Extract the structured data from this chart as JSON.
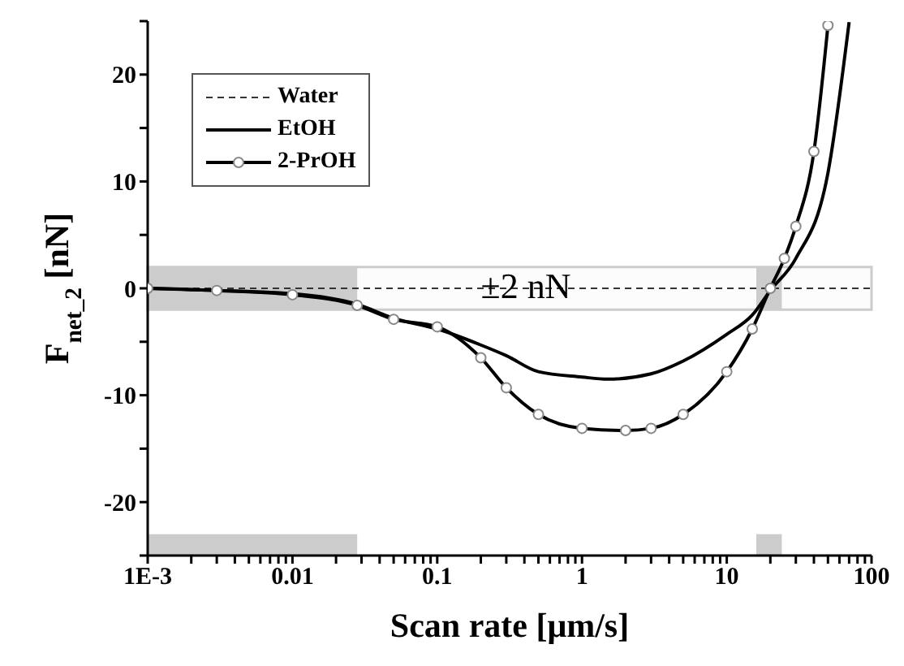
{
  "chart_data": {
    "type": "line",
    "xlabel": "Scan rate [μm/s]",
    "ylabel": "F$_{net_2}$ [nN]",
    "log": "x",
    "xlim": [
      0.001,
      100
    ],
    "xticks": [
      {
        "value": 0.001,
        "label": "1E-3"
      },
      {
        "value": 0.002,
        "label": null
      },
      {
        "value": 0.003,
        "label": null
      },
      {
        "value": 0.004,
        "label": null
      },
      {
        "value": 0.005,
        "label": null
      },
      {
        "value": 0.006,
        "label": null
      },
      {
        "value": 0.007,
        "label": null
      },
      {
        "value": 0.008,
        "label": null
      },
      {
        "value": 0.009,
        "label": null
      },
      0.01,
      {
        "value": 0.02,
        "label": null
      },
      {
        "value": 0.03,
        "label": null
      },
      {
        "value": 0.04,
        "label": null
      },
      {
        "value": 0.05,
        "label": null
      },
      {
        "value": 0.06,
        "label": null
      },
      {
        "value": 0.07,
        "label": null
      },
      {
        "value": 0.08,
        "label": null
      },
      {
        "value": 0.09,
        "label": null
      },
      0.1,
      {
        "value": 0.2,
        "label": null
      },
      {
        "value": 0.3,
        "label": null
      },
      {
        "value": 0.4,
        "label": null
      },
      {
        "value": 0.5,
        "label": null
      },
      {
        "value": 0.6,
        "label": null
      },
      {
        "value": 0.7,
        "label": null
      },
      {
        "value": 0.8,
        "label": null
      },
      {
        "value": 0.9,
        "label": null
      },
      1,
      {
        "value": 2,
        "label": null
      },
      {
        "value": 3,
        "label": null
      },
      {
        "value": 4,
        "label": null
      },
      {
        "value": 5,
        "label": null
      },
      {
        "value": 6,
        "label": null
      },
      {
        "value": 7,
        "label": null
      },
      {
        "value": 8,
        "label": null
      },
      {
        "value": 9,
        "label": null
      },
      10,
      {
        "value": 20,
        "label": null
      },
      {
        "value": 30,
        "label": null
      },
      {
        "value": 40,
        "label": null
      },
      {
        "value": 50,
        "label": null
      },
      {
        "value": 60,
        "label": null
      },
      {
        "value": 70,
        "label": null
      },
      {
        "value": 80,
        "label": null
      },
      {
        "value": 90,
        "label": null
      },
      100
    ],
    "ylim": [
      -25,
      25
    ],
    "yticks": [
      {
        "value": -25,
        "label": null
      },
      -20,
      {
        "value": -15,
        "label": null
      },
      -10,
      {
        "value": -5,
        "label": null
      },
      0,
      {
        "value": 5,
        "label": null
      },
      10,
      {
        "value": 15,
        "label": null
      },
      20,
      {
        "value": 25,
        "label": null
      }
    ],
    "grid": false,
    "legend": "top left",
    "series": [
      {
        "name": "Water",
        "color": "#333333",
        "line_style": "dashed",
        "x": [
          0.001,
          100
        ],
        "values": [
          0,
          0
        ]
      },
      {
        "name": "EtOH",
        "color": "#000000",
        "line_style": "solid",
        "x": [
          0.001,
          0.003,
          0.01,
          0.028,
          0.05,
          0.1,
          0.2,
          0.3,
          0.5,
          1,
          1.5,
          3,
          5,
          10,
          15,
          20,
          30,
          50,
          70
        ],
        "values": [
          0,
          -0.2,
          -0.5,
          -1.5,
          -2.8,
          -3.8,
          -5.3,
          -6.3,
          -7.8,
          -8.3,
          -8.5,
          -8,
          -6.8,
          -4.3,
          -2.5,
          -0.2,
          2.8,
          10.8,
          24.9
        ]
      },
      {
        "name": "2-PrOH",
        "color": "#000000",
        "line_style": "solid",
        "marker": "circle",
        "x": [
          0.001,
          0.003,
          0.01,
          0.028,
          0.05,
          0.1,
          0.2,
          0.3,
          0.5,
          1,
          2,
          3,
          5,
          10,
          15,
          20,
          25,
          30,
          40,
          50
        ],
        "values": [
          0,
          -0.2,
          -0.6,
          -1.6,
          -2.9,
          -3.6,
          -6.5,
          -9.3,
          -11.8,
          -13.1,
          -13.3,
          -13.1,
          -11.8,
          -7.8,
          -3.8,
          0,
          2.8,
          5.8,
          12.8,
          24.6
        ]
      }
    ],
    "bands": [
      {
        "axis": "y",
        "from": -2,
        "to": 2,
        "label": "±2 nN",
        "color": "#cccccc"
      },
      {
        "axis": "x",
        "from": 0.001,
        "to": 0.028,
        "color": "#cccccc"
      },
      {
        "axis": "x",
        "from": 16,
        "to": 24,
        "color": "#cccccc"
      }
    ]
  }
}
